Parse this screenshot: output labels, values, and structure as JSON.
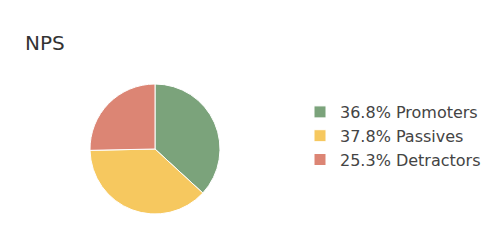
{
  "chart_data": {
    "type": "pie",
    "title": "NPS",
    "categories": [
      "36.8% Promoters",
      "37.8% Passives",
      "25.3% Detractors"
    ],
    "values": [
      36.8,
      37.8,
      25.3
    ],
    "colors": [
      "#7ba37b",
      "#f6c85f",
      "#dc8574"
    ],
    "legend": "right"
  }
}
